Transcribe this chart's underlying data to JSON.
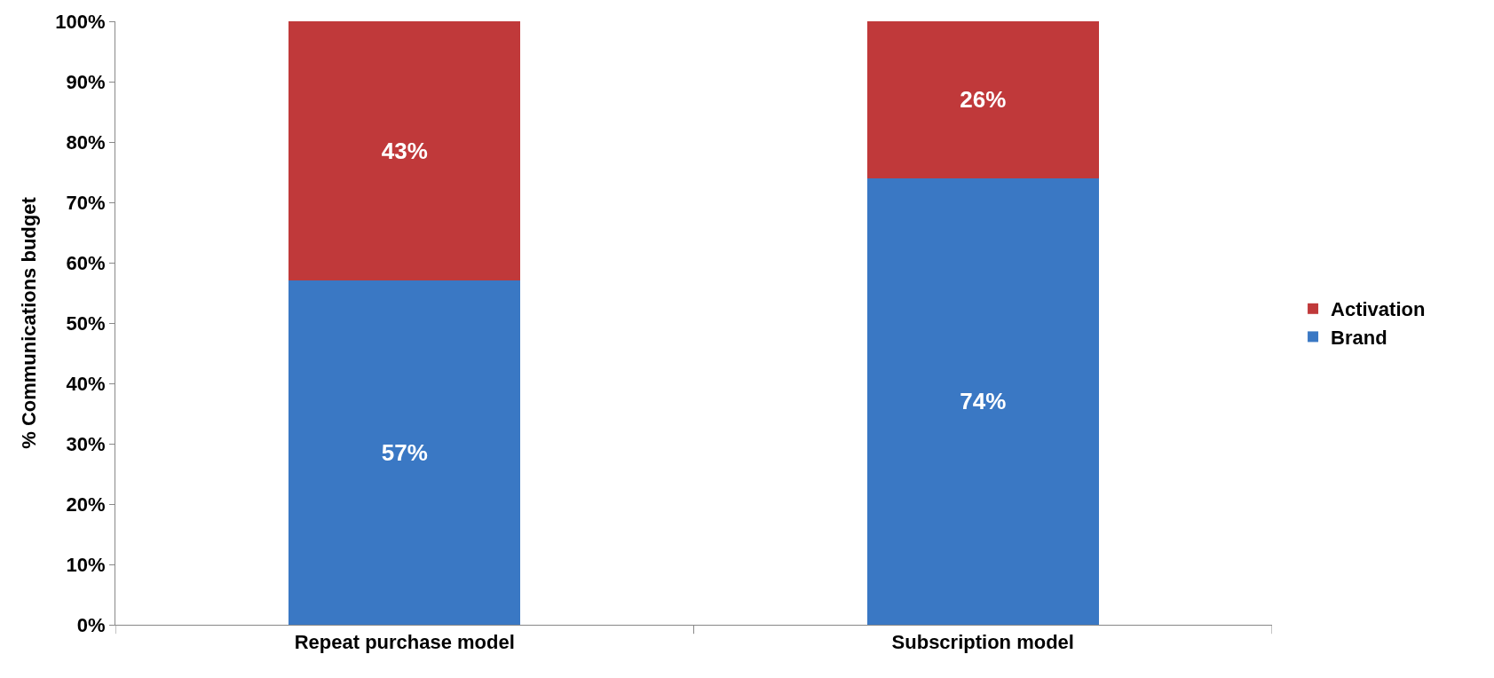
{
  "chart_data": {
    "type": "bar",
    "stacked": true,
    "ylabel": "% Communications budget",
    "categories": [
      "Repeat purchase model",
      "Subscription model"
    ],
    "series": [
      {
        "name": "Brand",
        "color": "#3a78c4",
        "values": [
          57,
          74
        ],
        "value_labels": [
          "57%",
          "74%"
        ]
      },
      {
        "name": "Activation",
        "color": "#c0393a",
        "values": [
          43,
          26
        ],
        "value_labels": [
          "43%",
          "26%"
        ]
      }
    ],
    "ylim": [
      0,
      100
    ],
    "yticks": [
      {
        "value": 0,
        "label": "0%"
      },
      {
        "value": 10,
        "label": "10%"
      },
      {
        "value": 20,
        "label": "20%"
      },
      {
        "value": 30,
        "label": "30%"
      },
      {
        "value": 40,
        "label": "40%"
      },
      {
        "value": 50,
        "label": "50%"
      },
      {
        "value": 60,
        "label": "60%"
      },
      {
        "value": 70,
        "label": "70%"
      },
      {
        "value": 80,
        "label": "80%"
      },
      {
        "value": 90,
        "label": "90%"
      },
      {
        "value": 100,
        "label": "100%"
      }
    ],
    "legend": "right"
  }
}
